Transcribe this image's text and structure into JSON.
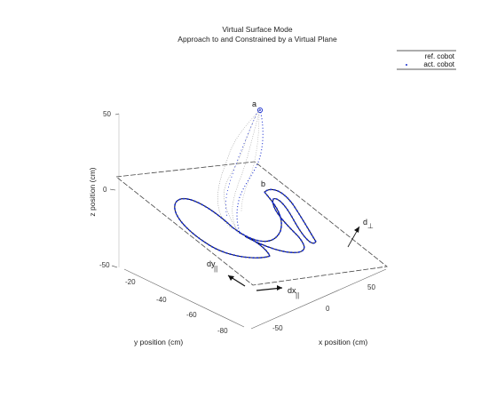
{
  "chart_data": {
    "type": "scatter",
    "title": "Virtual Surface Mode",
    "subtitle": "Approach to and Constrained by a Virtual Plane",
    "xlabel": "x position (cm)",
    "ylabel": "y position (cm)",
    "zlabel": "z position (cm)",
    "xlim": [
      -80,
      80
    ],
    "ylim": [
      -90,
      -10
    ],
    "zlim": [
      -50,
      55
    ],
    "x_ticks": [
      "-50",
      "0",
      "50"
    ],
    "y_ticks": [
      "-20",
      "-40",
      "-60",
      "-80"
    ],
    "z_ticks": [
      "50",
      "0",
      "-50"
    ],
    "grid": false,
    "legend_position": "top-right",
    "series": [
      {
        "name": "ref. cobot",
        "style": "solid line"
      },
      {
        "name": "act. cobot",
        "style": "dotted markers",
        "color": "#1a2fd0"
      }
    ],
    "annotations": [
      "a",
      "b",
      "d",
      "⊥",
      "dy",
      "||",
      "dx",
      "||"
    ]
  }
}
